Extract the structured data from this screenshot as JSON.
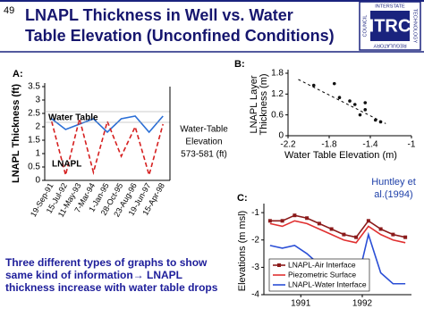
{
  "slide": {
    "number": "49",
    "title_lines": [
      "LNAPL Thickness in Well vs. Water",
      "Table Elevation (Unconfined Conditions)"
    ],
    "logo": {
      "mark": "ITRC",
      "top": "INTERSTATE",
      "right": "TECHNOLOGY",
      "bottom": "REGULATORY",
      "left": "COUNCIL"
    },
    "body": "Three different types of graphs to show same kind of information→ LNAPL thickness increase with water table drops"
  },
  "chart_data": [
    {
      "type": "line",
      "label": "A:",
      "ylabel": "LNAPL Thickness (ft)",
      "categories": [
        "19-Sep-91",
        "15-Jul-92",
        "11-May-93",
        "7-Mar-94",
        "1-Jan-95",
        "28-Oct-95",
        "23-Aug-96",
        "19-Jun-97",
        "15-Apr-98"
      ],
      "series": [
        {
          "name": "Water Table",
          "color": "#2b6fd6",
          "dashed": false,
          "values": [
            2.3,
            1.9,
            2.1,
            2.3,
            1.8,
            2.3,
            2.4,
            1.8,
            2.4
          ]
        },
        {
          "name": "LNAPL",
          "color": "#d62020",
          "dashed": true,
          "values": [
            2.2,
            0.2,
            2.3,
            0.3,
            2.2,
            0.9,
            2.0,
            0.2,
            2.1
          ]
        }
      ],
      "y2label": [
        "Water-Table",
        "Elevation",
        "573-581 (ft)"
      ],
      "ylim": [
        0,
        3.5
      ],
      "yticks": [
        0,
        0.5,
        1,
        1.5,
        2,
        2.5,
        3,
        3.5
      ]
    },
    {
      "type": "scatter",
      "label": "B:",
      "xlabel": "Water Table Elevation (m)",
      "ylabel": [
        "LNAPL Layer",
        "Thickness (m)"
      ],
      "x": [
        -1.95,
        -1.75,
        -1.7,
        -1.6,
        -1.55,
        -1.45,
        -1.45,
        -1.5,
        -1.35,
        -1.3
      ],
      "values": [
        1.45,
        1.5,
        1.1,
        1.0,
        0.9,
        0.95,
        0.75,
        0.6,
        0.45,
        0.4
      ],
      "color": "#111111",
      "trend": {
        "x": [
          -2.1,
          -1.25
        ],
        "y": [
          1.62,
          0.35
        ]
      },
      "xlim": [
        -2.2,
        -1
      ],
      "xticks": [
        -2.2,
        -1.8,
        -1.4,
        -1
      ],
      "ylim": [
        0,
        1.8
      ],
      "yticks": [
        0,
        0.6,
        1.2,
        1.8
      ]
    },
    {
      "type": "line",
      "label": "C:",
      "ylabel": "Elevations (m msl)",
      "source": [
        "Huntley et",
        "al.(1994)"
      ],
      "legend": "lower left",
      "x": [
        1990.5,
        1990.7,
        1990.9,
        1991.1,
        1991.3,
        1991.5,
        1991.7,
        1991.9,
        1992.1,
        1992.3,
        1992.5,
        1992.7
      ],
      "series": [
        {
          "name": "LNAPL-Air Interface",
          "color": "#8b1a1a",
          "marker": true,
          "values": [
            -1.3,
            -1.3,
            -1.1,
            -1.2,
            -1.4,
            -1.6,
            -1.8,
            -1.9,
            -1.3,
            -1.6,
            -1.8,
            -1.9
          ]
        },
        {
          "name": "Piezometric Surface",
          "color": "#e03030",
          "marker": false,
          "values": [
            -1.4,
            -1.5,
            -1.3,
            -1.4,
            -1.6,
            -1.8,
            -2.0,
            -2.1,
            -1.5,
            -1.8,
            -2.0,
            -2.1
          ]
        },
        {
          "name": "LNAPL-Water Interface",
          "color": "#2b4fd6",
          "marker": false,
          "values": [
            -2.2,
            -2.3,
            -2.2,
            -2.5,
            -2.9,
            -3.2,
            -3.6,
            -3.7,
            -1.8,
            -3.2,
            -3.6,
            -3.6
          ]
        }
      ],
      "xlim": [
        1990.4,
        1992.8
      ],
      "xticks": [
        1991,
        1992
      ],
      "ylim": [
        -4,
        -0.8
      ],
      "yticks": [
        -1,
        -2,
        -3,
        -4
      ]
    }
  ]
}
